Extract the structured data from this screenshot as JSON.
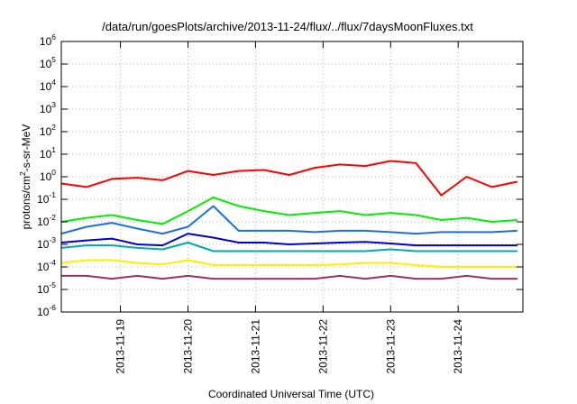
{
  "chart_data": {
    "type": "line",
    "title": "/data/run/goesPlots/archive/2013-11-24/flux/../flux/7daysMoonFluxes.txt",
    "xlabel": "Coordinated Universal Time (UTC)",
    "ylabel": {
      "prefix": "protons/cm",
      "sup": "2",
      "suffix": "-s-sr-MeV"
    },
    "y_scale": "log",
    "ylim": [
      1e-06,
      1000000.0
    ],
    "y_ticks": [
      {
        "base": "10",
        "exp": "-6",
        "value": 1e-06
      },
      {
        "base": "10",
        "exp": "-5",
        "value": 1e-05
      },
      {
        "base": "10",
        "exp": "-4",
        "value": 0.0001
      },
      {
        "base": "10",
        "exp": "-3",
        "value": 0.001
      },
      {
        "base": "10",
        "exp": "-2",
        "value": 0.01
      },
      {
        "base": "10",
        "exp": "-1",
        "value": 0.1
      },
      {
        "base": "10",
        "exp": "0",
        "value": 1
      },
      {
        "base": "10",
        "exp": "1",
        "value": 10.0
      },
      {
        "base": "10",
        "exp": "2",
        "value": 100.0
      },
      {
        "base": "10",
        "exp": "3",
        "value": 1000.0
      },
      {
        "base": "10",
        "exp": "4",
        "value": 10000.0
      },
      {
        "base": "10",
        "exp": "5",
        "value": 100000.0
      },
      {
        "base": "10",
        "exp": "6",
        "value": 1000000.0
      }
    ],
    "xlim": [
      "2013-11-18T03:00",
      "2013-11-24T23:00"
    ],
    "x_ticks": [
      "2013-11-19",
      "2013-11-20",
      "2013-11-21",
      "2013-11-22",
      "2013-11-23",
      "2013-11-24"
    ],
    "grid": true,
    "series_dates": [
      "2013-11-18T03:00",
      "2013-11-18T12:00",
      "2013-11-18T21:00",
      "2013-11-19T06:00",
      "2013-11-19T15:00",
      "2013-11-20T00:00",
      "2013-11-20T09:00",
      "2013-11-20T18:00",
      "2013-11-21T03:00",
      "2013-11-21T12:00",
      "2013-11-21T21:00",
      "2013-11-22T06:00",
      "2013-11-22T15:00",
      "2013-11-23T00:00",
      "2013-11-23T09:00",
      "2013-11-23T18:00",
      "2013-11-24T03:00",
      "2013-11-24T12:00",
      "2013-11-24T21:00"
    ],
    "series": [
      {
        "color": "#ff0000",
        "values": [
          0.5,
          0.35,
          0.8,
          0.9,
          0.7,
          1.8,
          1.2,
          1.8,
          2.0,
          1.2,
          2.5,
          3.5,
          3.0,
          5.0,
          4.0,
          0.15,
          1.0,
          0.35,
          0.6
        ]
      },
      {
        "color": "#00ee00",
        "values": [
          0.01,
          0.015,
          0.02,
          0.012,
          0.008,
          0.03,
          0.12,
          0.05,
          0.03,
          0.02,
          0.025,
          0.03,
          0.02,
          0.025,
          0.02,
          0.012,
          0.015,
          0.01,
          0.012
        ]
      },
      {
        "color": "#1a6fe8",
        "values": [
          0.003,
          0.006,
          0.009,
          0.005,
          0.003,
          0.006,
          0.05,
          0.004,
          0.004,
          0.004,
          0.0035,
          0.004,
          0.004,
          0.0035,
          0.003,
          0.0035,
          0.0035,
          0.0035,
          0.004
        ]
      },
      {
        "color": "#0000cc",
        "values": [
          0.0012,
          0.0015,
          0.0018,
          0.001,
          0.0009,
          0.003,
          0.002,
          0.0012,
          0.0012,
          0.001,
          0.0011,
          0.0012,
          0.0013,
          0.0011,
          0.0009,
          0.0009,
          0.0009,
          0.0009,
          0.0009
        ]
      },
      {
        "color": "#00aaaa",
        "values": [
          0.0007,
          0.0009,
          0.0009,
          0.0007,
          0.0006,
          0.0012,
          0.0005,
          0.0005,
          0.0005,
          0.0005,
          0.0005,
          0.0005,
          0.0005,
          0.0006,
          0.0005,
          0.0005,
          0.0005,
          0.0005,
          0.0005
        ]
      },
      {
        "color": "#ffee00",
        "values": [
          0.00015,
          0.0002,
          0.0002,
          0.00015,
          0.00013,
          0.0002,
          0.00012,
          0.00012,
          0.00012,
          0.00012,
          0.00012,
          0.00013,
          0.00015,
          0.00015,
          0.00012,
          0.0001,
          0.0001,
          0.0001,
          0.0001
        ]
      },
      {
        "color": "#993366",
        "values": [
          4e-05,
          4e-05,
          3e-05,
          4e-05,
          3e-05,
          4e-05,
          3e-05,
          3e-05,
          3e-05,
          3e-05,
          3e-05,
          4e-05,
          3e-05,
          4e-05,
          3e-05,
          3e-05,
          4e-05,
          3e-05,
          3e-05
        ]
      }
    ]
  }
}
